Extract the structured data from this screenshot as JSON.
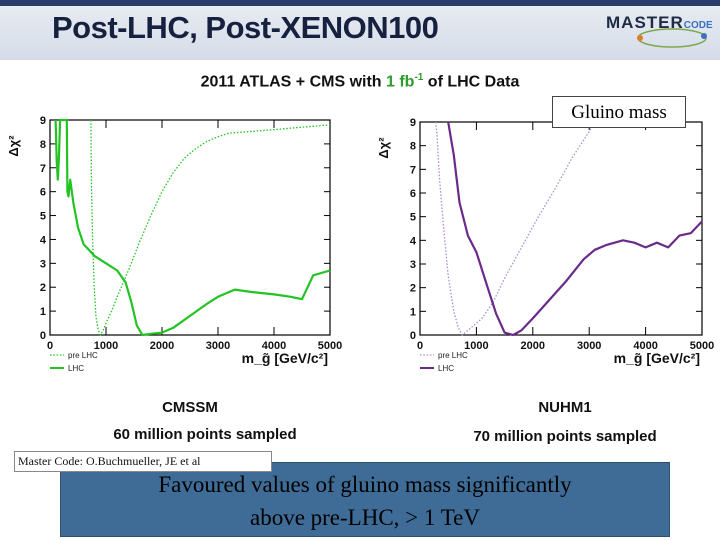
{
  "slide": {
    "title": "Post-LHC, Post-XENON100",
    "heading_pre": "2011 ATLAS + CMS with ",
    "heading_lumi": "1 fb",
    "heading_exp": "-1",
    "heading_post": " of LHC Data",
    "callout": "Gluino mass",
    "credit": "Master Code: O.Buchmueller, JE et al",
    "conclusion_line1": "Favoured values of gluino mass significantly",
    "conclusion_line2": "above pre-LHC, > 1 TeV"
  },
  "logo": {
    "text": "MASTER",
    "sub": "CODE",
    "icon": "mastercode-logo-icon"
  },
  "colors": {
    "green": "#22c322",
    "purple": "#6a2a8a",
    "lavender": "#a88fcb",
    "box": "#3e6c96"
  },
  "panels": [
    {
      "scheme": "CMSSM",
      "points": "60 million points sampled"
    },
    {
      "scheme": "NUHM1",
      "points": "70 million points sampled"
    }
  ],
  "chart_data": [
    {
      "type": "line",
      "title": "CMSSM",
      "ylabel": "Δχ²",
      "xlabel": "m_g̃ [GeV/c²]",
      "xlim": [
        0,
        5000
      ],
      "ylim": [
        0,
        9
      ],
      "xticks": [
        0,
        1000,
        2000,
        3000,
        4000,
        5000
      ],
      "yticks": [
        0,
        1,
        2,
        3,
        4,
        5,
        6,
        7,
        8,
        9
      ],
      "series": [
        {
          "name": "pre LHC",
          "style": "dotted",
          "color": "#22c322",
          "points": [
            [
              730,
              9
            ],
            [
              740,
              6.5
            ],
            [
              760,
              4
            ],
            [
              790,
              2
            ],
            [
              820,
              0.8
            ],
            [
              860,
              0.2
            ],
            [
              900,
              0
            ],
            [
              950,
              0.2
            ],
            [
              1000,
              0.5
            ],
            [
              1100,
              1
            ],
            [
              1200,
              1.6
            ],
            [
              1400,
              2.7
            ],
            [
              1600,
              3.9
            ],
            [
              1800,
              5
            ],
            [
              2000,
              6
            ],
            [
              2200,
              6.8
            ],
            [
              2400,
              7.4
            ],
            [
              2600,
              7.8
            ],
            [
              2800,
              8.1
            ],
            [
              3000,
              8.3
            ],
            [
              3200,
              8.45
            ],
            [
              3500,
              8.5
            ],
            [
              4000,
              8.6
            ],
            [
              4500,
              8.7
            ],
            [
              5000,
              8.8
            ]
          ]
        },
        {
          "name": "LHC",
          "style": "solid",
          "color": "#22c322",
          "points": [
            [
              100,
              9
            ],
            [
              120,
              7.3
            ],
            [
              140,
              6.5
            ],
            [
              160,
              7.5
            ],
            [
              180,
              9
            ],
            [
              300,
              9
            ],
            [
              310,
              6
            ],
            [
              330,
              5.8
            ],
            [
              360,
              6.5
            ],
            [
              420,
              5.5
            ],
            [
              500,
              4.5
            ],
            [
              600,
              3.8
            ],
            [
              800,
              3.3
            ],
            [
              1000,
              3
            ],
            [
              1200,
              2.7
            ],
            [
              1350,
              2.2
            ],
            [
              1450,
              1.4
            ],
            [
              1550,
              0.4
            ],
            [
              1650,
              0
            ],
            [
              1800,
              0.05
            ],
            [
              2000,
              0.1
            ],
            [
              2200,
              0.3
            ],
            [
              2500,
              0.8
            ],
            [
              2800,
              1.3
            ],
            [
              3000,
              1.6
            ],
            [
              3300,
              1.9
            ],
            [
              3600,
              1.8
            ],
            [
              4000,
              1.7
            ],
            [
              4300,
              1.6
            ],
            [
              4500,
              1.5
            ],
            [
              4700,
              2.5
            ],
            [
              5000,
              2.7
            ]
          ]
        }
      ]
    },
    {
      "type": "line",
      "title": "NUHM1",
      "ylabel": "Δχ²",
      "xlabel": "m_g̃ [GeV/c²]",
      "xlim": [
        0,
        5000
      ],
      "ylim": [
        0,
        9
      ],
      "xticks": [
        0,
        1000,
        2000,
        3000,
        4000,
        5000
      ],
      "yticks": [
        0,
        1,
        2,
        3,
        4,
        5,
        6,
        7,
        8,
        9
      ],
      "series": [
        {
          "name": "pre LHC",
          "style": "dotted",
          "color": "#a88fcb",
          "points": [
            [
              280,
              9
            ],
            [
              300,
              8.5
            ],
            [
              350,
              6.5
            ],
            [
              420,
              4.5
            ],
            [
              500,
              2.5
            ],
            [
              600,
              1
            ],
            [
              680,
              0.3
            ],
            [
              750,
              0
            ],
            [
              900,
              0.3
            ],
            [
              1100,
              0.7
            ],
            [
              1300,
              1.4
            ],
            [
              1500,
              2.4
            ],
            [
              1800,
              3.7
            ],
            [
              2100,
              5
            ],
            [
              2400,
              6.2
            ],
            [
              2700,
              7.5
            ],
            [
              3000,
              8.6
            ],
            [
              3100,
              9
            ]
          ]
        },
        {
          "name": "LHC",
          "style": "solid",
          "color": "#6a2a8a",
          "points": [
            [
              500,
              9
            ],
            [
              600,
              7.6
            ],
            [
              700,
              5.6
            ],
            [
              850,
              4.2
            ],
            [
              1000,
              3.5
            ],
            [
              1200,
              2
            ],
            [
              1350,
              0.9
            ],
            [
              1500,
              0.1
            ],
            [
              1650,
              0
            ],
            [
              1800,
              0.2
            ],
            [
              2000,
              0.7
            ],
            [
              2300,
              1.5
            ],
            [
              2600,
              2.3
            ],
            [
              2900,
              3.2
            ],
            [
              3100,
              3.6
            ],
            [
              3300,
              3.8
            ],
            [
              3600,
              4
            ],
            [
              3800,
              3.9
            ],
            [
              4000,
              3.7
            ],
            [
              4200,
              3.9
            ],
            [
              4400,
              3.7
            ],
            [
              4600,
              4.2
            ],
            [
              4800,
              4.3
            ],
            [
              5000,
              4.8
            ]
          ]
        }
      ]
    }
  ]
}
